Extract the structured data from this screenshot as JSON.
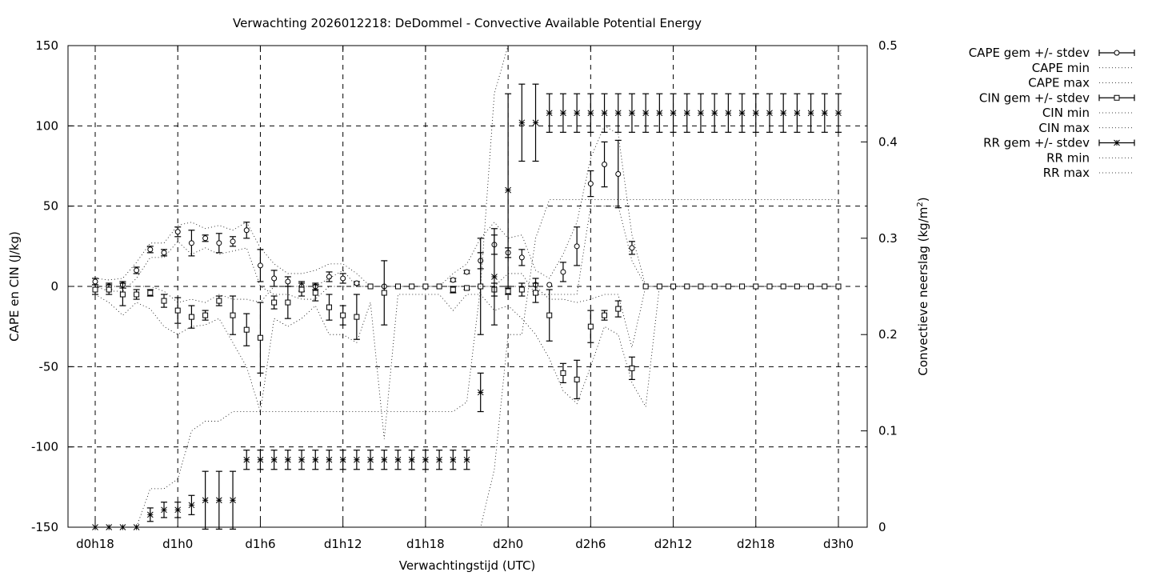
{
  "chart_data": {
    "type": "line",
    "title": "Verwachting 2026012218: DeDommel - Convective Available Potential Energy",
    "xlabel": "Verwachtingstijd (UTC)",
    "ylabel": "CAPE en CIN (J/kg)",
    "y2label": "Convectieve neerslag (kg/m",
    "y2label_sup": "2",
    "y2label_end": ")",
    "xlim": [
      18,
      78
    ],
    "ylim": [
      -150,
      150
    ],
    "y2lim": [
      0,
      0.5
    ],
    "grid": true,
    "legend_position": "outside-right",
    "x_ticks": [
      {
        "x": 18,
        "label": "d0h18"
      },
      {
        "x": 24,
        "label": "d1h0"
      },
      {
        "x": 30,
        "label": "d1h6"
      },
      {
        "x": 36,
        "label": "d1h12"
      },
      {
        "x": 42,
        "label": "d1h18"
      },
      {
        "x": 48,
        "label": "d2h0"
      },
      {
        "x": 54,
        "label": "d2h6"
      },
      {
        "x": 60,
        "label": "d2h12"
      },
      {
        "x": 66,
        "label": "d2h18"
      },
      {
        "x": 72,
        "label": "d3h0"
      }
    ],
    "y_ticks": [
      {
        "v": 150,
        "label": "150"
      },
      {
        "v": 100,
        "label": "100"
      },
      {
        "v": 50,
        "label": "50"
      },
      {
        "v": 0,
        "label": "0"
      },
      {
        "v": -50,
        "label": "-50"
      },
      {
        "v": -100,
        "label": "-100"
      },
      {
        "v": -150,
        "label": "-150"
      }
    ],
    "y2_ticks": [
      {
        "v": 0.5,
        "label": "0.5"
      },
      {
        "v": 0.4,
        "label": "0.4"
      },
      {
        "v": 0.3,
        "label": "0.3"
      },
      {
        "v": 0.2,
        "label": "0.2"
      },
      {
        "v": 0.1,
        "label": "0.1"
      },
      {
        "v": 0,
        "label": "0"
      }
    ],
    "legend": {
      "cape_mean": "CAPE gem +/- stdev",
      "cape_min": "CAPE min",
      "cape_max": "CAPE max",
      "cin_mean": "CIN gem +/- stdev",
      "cin_min": "CIN min",
      "cin_max": "CIN max",
      "rr_mean": "RR gem +/- stdev",
      "rr_min": "RR min",
      "rr_max": "RR max"
    },
    "x": [
      18,
      19,
      20,
      21,
      22,
      23,
      24,
      25,
      26,
      27,
      28,
      29,
      30,
      31,
      32,
      33,
      34,
      35,
      36,
      37,
      38,
      39,
      40,
      41,
      42,
      43,
      44,
      45,
      46,
      47,
      48,
      49,
      50,
      51,
      52,
      53,
      54,
      55,
      56,
      57,
      58,
      59,
      60,
      61,
      62,
      63,
      64,
      65,
      66,
      67,
      68,
      69,
      70,
      71,
      72
    ],
    "series": [
      {
        "key": "cape",
        "axis": "y",
        "mean": [
          3,
          0,
          1,
          10,
          23,
          21,
          34,
          27,
          30,
          27,
          28,
          35,
          13,
          5,
          3,
          0,
          0,
          6,
          5,
          2,
          0,
          0,
          0,
          0,
          0,
          0,
          4,
          9,
          16,
          26,
          21,
          18,
          1,
          1,
          9,
          25,
          64,
          76,
          70,
          24,
          0,
          0,
          0,
          0,
          0,
          0,
          0,
          0,
          0,
          0,
          0,
          0,
          0,
          0,
          0
        ],
        "stdev": [
          2,
          2,
          2,
          2,
          2,
          2,
          3,
          8,
          2,
          6,
          3,
          5,
          10,
          5,
          3,
          3,
          2,
          3,
          3,
          1,
          0,
          0,
          0,
          0,
          0,
          0,
          1,
          1,
          5,
          6,
          3,
          5,
          4,
          0,
          6,
          12,
          8,
          14,
          21,
          4,
          0,
          0,
          0,
          0,
          0,
          0,
          0,
          0,
          0,
          0,
          0,
          0,
          0,
          0,
          0
        ],
        "min": [
          0,
          -3,
          -3,
          5,
          18,
          18,
          28,
          20,
          24,
          20,
          22,
          24,
          0,
          -5,
          -5,
          -8,
          -8,
          0,
          0,
          0,
          0,
          0,
          0,
          0,
          0,
          0,
          0,
          0,
          0,
          0,
          8,
          8,
          -5,
          -5,
          -5,
          -5,
          50,
          50,
          50,
          16,
          0,
          0,
          0,
          0,
          0,
          0,
          0,
          0,
          0,
          0,
          0,
          0,
          0,
          0,
          0
        ],
        "max": [
          5,
          4,
          5,
          15,
          27,
          27,
          38,
          40,
          36,
          38,
          35,
          40,
          24,
          14,
          8,
          8,
          10,
          14,
          14,
          8,
          0,
          0,
          0,
          0,
          0,
          0,
          8,
          14,
          30,
          40,
          30,
          32,
          10,
          5,
          20,
          40,
          80,
          100,
          95,
          32,
          0,
          0,
          0,
          0,
          0,
          0,
          0,
          0,
          0,
          0,
          0,
          0,
          0,
          0,
          0
        ]
      },
      {
        "key": "cin",
        "axis": "y",
        "mean": [
          -2,
          -2,
          -5,
          -5,
          -4,
          -9,
          -15,
          -19,
          -18,
          -9,
          -18,
          -27,
          -32,
          -10,
          -10,
          -2,
          -4,
          -13,
          -18,
          -19,
          0,
          -4,
          0,
          0,
          0,
          0,
          -2,
          -1,
          0,
          -2,
          -3,
          -2,
          -4,
          -18,
          -54,
          -58,
          -25,
          -18,
          -14,
          -51,
          0,
          0,
          0,
          0,
          0,
          0,
          0,
          0,
          0,
          0,
          0,
          0,
          0,
          0,
          0
        ],
        "stdev": [
          3,
          3,
          7,
          3,
          2,
          4,
          8,
          7,
          3,
          3,
          12,
          10,
          22,
          4,
          10,
          4,
          5,
          8,
          6,
          14,
          0,
          20,
          0,
          0,
          0,
          0,
          2,
          1,
          30,
          4,
          2,
          4,
          6,
          16,
          6,
          12,
          10,
          3,
          5,
          7,
          0,
          0,
          0,
          0,
          0,
          0,
          0,
          0,
          0,
          0,
          0,
          0,
          0,
          0,
          0
        ],
        "min": [
          -5,
          -10,
          -18,
          -10,
          -14,
          -25,
          -30,
          -25,
          -24,
          -20,
          -35,
          -50,
          -78,
          -20,
          -25,
          -20,
          -12,
          -30,
          -30,
          -35,
          -10,
          -95,
          -5,
          -5,
          -5,
          -5,
          -15,
          -5,
          -5,
          -15,
          -12,
          -20,
          -30,
          -45,
          -65,
          -73,
          -50,
          -25,
          -30,
          -60,
          -75,
          0,
          0,
          0,
          0,
          0,
          0,
          0,
          0,
          0,
          0,
          0,
          0,
          0,
          0
        ],
        "max": [
          0,
          0,
          0,
          0,
          0,
          -3,
          -10,
          -8,
          -10,
          -5,
          -8,
          -8,
          -10,
          0,
          0,
          0,
          0,
          5,
          10,
          0,
          0,
          0,
          0,
          0,
          0,
          0,
          0,
          0,
          0,
          0,
          0,
          0,
          0,
          -8,
          -8,
          -10,
          -8,
          -5,
          -5,
          -38,
          0,
          0,
          0,
          0,
          0,
          0,
          0,
          0,
          0,
          0,
          0,
          0,
          0,
          0,
          0
        ]
      },
      {
        "key": "rr",
        "axis": "y2",
        "mean": [
          0,
          0,
          0,
          0,
          0.013,
          0.018,
          0.018,
          0.023,
          0.028,
          0.028,
          0.028,
          0.07,
          0.07,
          0.07,
          0.07,
          0.07,
          0.07,
          0.07,
          0.07,
          0.07,
          0.07,
          0.07,
          0.07,
          0.07,
          0.07,
          0.07,
          0.07,
          0.07,
          0.14,
          0.26,
          0.35,
          0.42,
          0.42,
          0.43,
          0.43,
          0.43,
          0.43,
          0.43,
          0.43,
          0.43,
          0.43,
          0.43,
          0.43,
          0.43,
          0.43,
          0.43,
          0.43,
          0.43,
          0.43,
          0.43,
          0.43,
          0.43,
          0.43,
          0.43,
          0.43
        ],
        "stdev": [
          0,
          0,
          0,
          0,
          0.007,
          0.008,
          0.008,
          0.01,
          0.03,
          0.03,
          0.03,
          0.01,
          0.01,
          0.01,
          0.01,
          0.01,
          0.01,
          0.01,
          0.01,
          0.01,
          0.01,
          0.01,
          0.01,
          0.01,
          0.01,
          0.01,
          0.01,
          0.01,
          0.02,
          0.05,
          0.1,
          0.04,
          0.04,
          0.02,
          0.02,
          0.02,
          0.02,
          0.02,
          0.02,
          0.02,
          0.02,
          0.02,
          0.02,
          0.02,
          0.02,
          0.02,
          0.02,
          0.02,
          0.02,
          0.02,
          0.02,
          0.02,
          0.02,
          0.02,
          0.02
        ],
        "min": [
          0,
          0,
          0,
          0,
          0,
          0,
          0,
          0,
          0,
          0,
          0,
          0,
          0,
          0,
          0,
          0,
          0,
          0,
          0,
          0,
          0,
          0,
          0,
          0,
          0,
          0,
          0,
          0,
          0,
          0.06,
          0.2,
          0.2,
          0.3,
          0.34,
          0.34,
          0.34,
          0.34,
          0.34,
          0.34,
          0.34,
          0.34,
          0.34,
          0.34,
          0.34,
          0.34,
          0.34,
          0.34,
          0.34,
          0.34,
          0.34,
          0.34,
          0.34,
          0.34,
          0.34,
          0.34
        ],
        "max": [
          0,
          0,
          0,
          0,
          0.04,
          0.04,
          0.05,
          0.1,
          0.11,
          0.11,
          0.12,
          0.12,
          0.12,
          0.12,
          0.12,
          0.12,
          0.12,
          0.12,
          0.12,
          0.12,
          0.12,
          0.12,
          0.12,
          0.12,
          0.12,
          0.12,
          0.12,
          0.13,
          0.25,
          0.45,
          0.5,
          0.5,
          0.5,
          0.5,
          0.5,
          0.5,
          0.5,
          0.5,
          0.5,
          0.5,
          0.5,
          0.5,
          0.5,
          0.5,
          0.5,
          0.5,
          0.5,
          0.5,
          0.5,
          0.5,
          0.5,
          0.5,
          0.5,
          0.5,
          0.5
        ]
      }
    ]
  }
}
